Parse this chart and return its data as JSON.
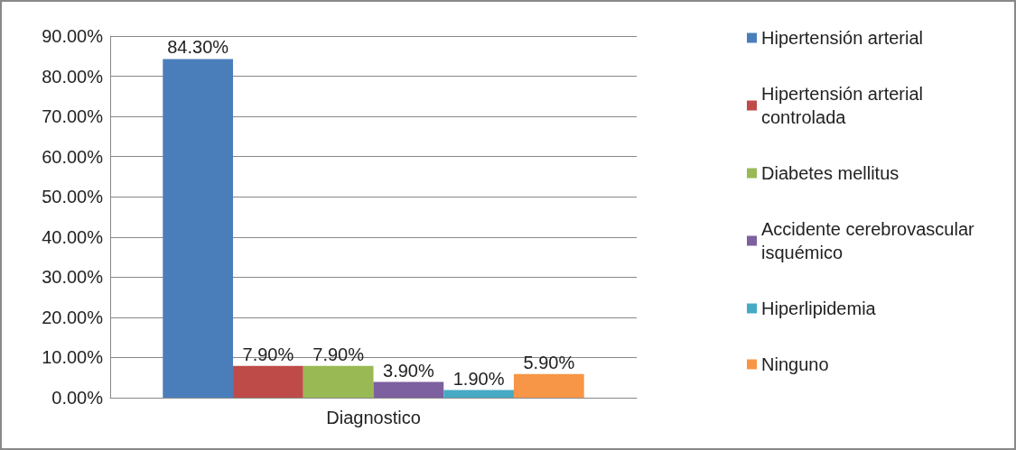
{
  "chart_data": {
    "type": "bar",
    "xlabel": null,
    "categories": [
      "Diagnostico"
    ],
    "series": [
      {
        "name": "Hipertensión arterial",
        "color": "#4a7ebb",
        "values": [
          84.3
        ],
        "value_labels": [
          "84.30%"
        ]
      },
      {
        "name": "Hipertensión arterial controlada",
        "color": "#be4b48",
        "values": [
          7.9
        ],
        "value_labels": [
          "7.90%"
        ]
      },
      {
        "name": "Diabetes mellitus",
        "color": "#98b954",
        "values": [
          7.9
        ],
        "value_labels": [
          "7.90%"
        ]
      },
      {
        "name": "Accidente cerebrovascular isquémico",
        "color": "#7d60a0",
        "values": [
          3.9
        ],
        "value_labels": [
          "3.90%"
        ]
      },
      {
        "name": "Hiperlipidemia",
        "color": "#46aac5",
        "values": [
          1.9
        ],
        "value_labels": [
          "1.90%"
        ]
      },
      {
        "name": "Ninguno",
        "color": "#f79646",
        "values": [
          5.9
        ],
        "value_labels": [
          "5.90%"
        ]
      }
    ],
    "ylim": [
      0,
      90
    ],
    "yticks": [
      {
        "value": 0,
        "label": "0.00%"
      },
      {
        "value": 10,
        "label": "10.00%"
      },
      {
        "value": 20,
        "label": "20.00%"
      },
      {
        "value": 30,
        "label": "30.00%"
      },
      {
        "value": 40,
        "label": "40.00%"
      },
      {
        "value": 50,
        "label": "50.00%"
      },
      {
        "value": 60,
        "label": "60.00%"
      },
      {
        "value": 70,
        "label": "70.00%"
      },
      {
        "value": 80,
        "label": "80.00%"
      },
      {
        "value": 90,
        "label": "90.00%"
      }
    ],
    "grid": "y",
    "legend": "right"
  }
}
